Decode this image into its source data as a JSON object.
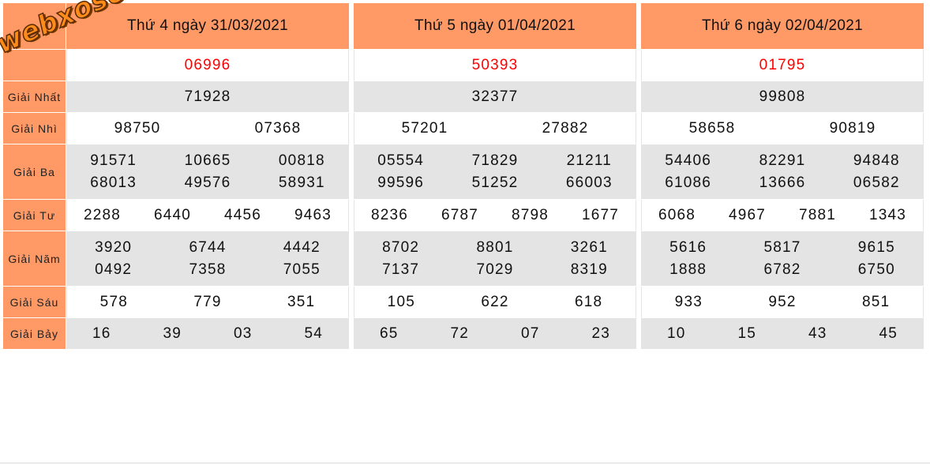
{
  "logo_text": "webxoso.net",
  "colors": {
    "header": "#ff9966",
    "alt_row": "#e4e4e4",
    "special": "#ff0000"
  },
  "prize_labels": [
    "",
    "Giải Nhất",
    "Giải Nhì",
    "Giải Ba",
    "Giải Tư",
    "Giải Năm",
    "Giải Sáu",
    "Giải Bảy"
  ],
  "days": [
    {
      "title": "Thứ 4 ngày 31/03/2021",
      "prizes": [
        [
          "06996"
        ],
        [
          "71928"
        ],
        [
          "98750",
          "07368"
        ],
        [
          "91571",
          "10665",
          "00818",
          "68013",
          "49576",
          "58931"
        ],
        [
          "2288",
          "6440",
          "4456",
          "9463"
        ],
        [
          "3920",
          "6744",
          "4442",
          "0492",
          "7358",
          "7055"
        ],
        [
          "578",
          "779",
          "351"
        ],
        [
          "16",
          "39",
          "03",
          "54"
        ]
      ]
    },
    {
      "title": "Thứ 5 ngày 01/04/2021",
      "prizes": [
        [
          "50393"
        ],
        [
          "32377"
        ],
        [
          "57201",
          "27882"
        ],
        [
          "05554",
          "71829",
          "21211",
          "99596",
          "51252",
          "66003"
        ],
        [
          "8236",
          "6787",
          "8798",
          "1677"
        ],
        [
          "8702",
          "8801",
          "3261",
          "7137",
          "7029",
          "8319"
        ],
        [
          "105",
          "622",
          "618"
        ],
        [
          "65",
          "72",
          "07",
          "23"
        ]
      ]
    },
    {
      "title": "Thứ 6 ngày 02/04/2021",
      "prizes": [
        [
          "01795"
        ],
        [
          "99808"
        ],
        [
          "58658",
          "90819"
        ],
        [
          "54406",
          "82291",
          "94848",
          "61086",
          "13666",
          "06582"
        ],
        [
          "6068",
          "4967",
          "7881",
          "1343"
        ],
        [
          "5616",
          "5817",
          "9615",
          "1888",
          "6782",
          "6750"
        ],
        [
          "933",
          "952",
          "851"
        ],
        [
          "10",
          "15",
          "43",
          "45"
        ]
      ]
    }
  ]
}
